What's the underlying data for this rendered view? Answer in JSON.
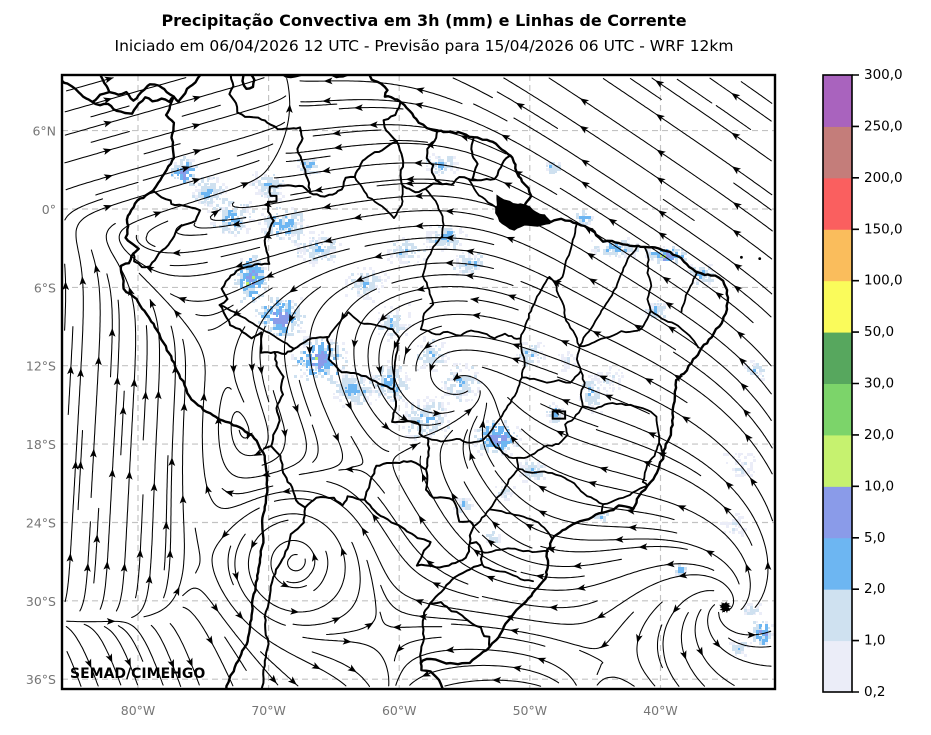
{
  "title": "Precipitação Convectiva em 3h (mm) e Linhas de Corrente",
  "subtitle": "Iniciado em 06/04/2026 12 UTC - Previsão para 15/04/2026 06 UTC - WRF 12km",
  "watermark": "SEMAD/CIMEHGO",
  "map": {
    "extent": {
      "lon_min": -85.82,
      "lon_max": -31.23,
      "lat_min": -36.75,
      "lat_max": 10.26
    },
    "lat_ticks": [
      {
        "label": "6°N",
        "value": 6
      },
      {
        "label": "0°",
        "value": 0
      },
      {
        "label": "6°S",
        "value": -6
      },
      {
        "label": "12°S",
        "value": -12
      },
      {
        "label": "18°S",
        "value": -18
      },
      {
        "label": "24°S",
        "value": -24
      },
      {
        "label": "30°S",
        "value": -30
      },
      {
        "label": "36°S",
        "value": -36
      }
    ],
    "lon_ticks": [
      {
        "label": "80°W",
        "value": -80
      },
      {
        "label": "70°W",
        "value": -70
      },
      {
        "label": "60°W",
        "value": -60
      },
      {
        "label": "50°W",
        "value": -50
      },
      {
        "label": "40°W",
        "value": -40
      }
    ]
  },
  "colorbar": {
    "tick_labels": [
      "0,2",
      "1,0",
      "2,0",
      "5,0",
      "10,0",
      "20,0",
      "30,0",
      "50,0",
      "100,0",
      "150,0",
      "200,0",
      "250,0",
      "300,0"
    ],
    "levels": [
      0.2,
      1.0,
      2.0,
      5.0,
      10.0,
      20.0,
      30.0,
      50.0,
      100.0,
      150.0,
      200.0,
      250.0,
      300.0
    ],
    "segment_colors": [
      "#ebedf8",
      "#cfe1f0",
      "#6db6f2",
      "#8a9be9",
      "#c6f26f",
      "#7cd46a",
      "#57a75e",
      "#fafb5b",
      "#fabd5c",
      "#fa5f5f",
      "#c47d7a",
      "#a963be"
    ]
  },
  "styles": {
    "grid_color": "#c2c2c2",
    "axis_label_color": "#767676",
    "line_color": "#000000",
    "precip_palette": {
      "faint": "#ebedf8",
      "light": "#cfe1f0",
      "blue": "#6db6f2",
      "periwinkle": "#8a9be9",
      "green": "#b9ee6e"
    }
  }
}
